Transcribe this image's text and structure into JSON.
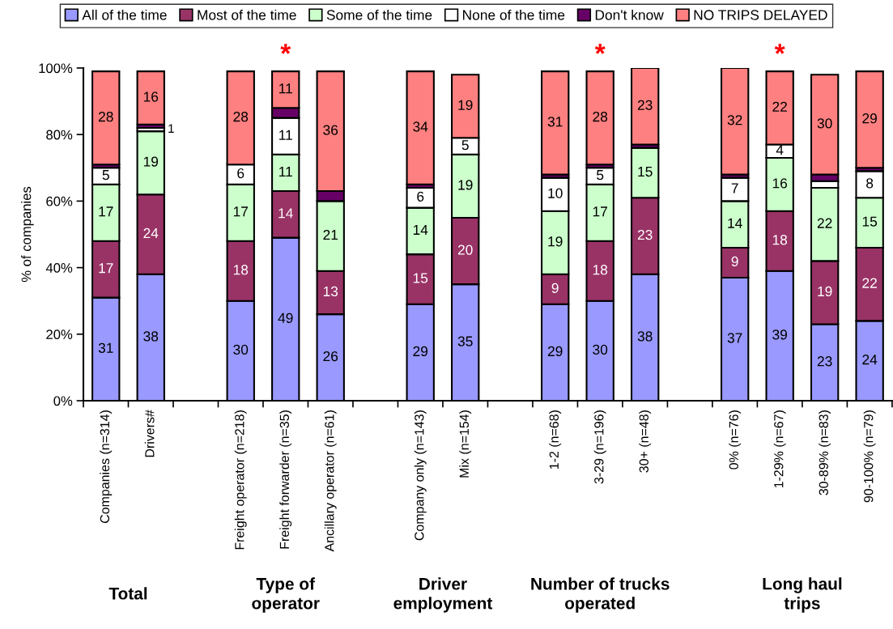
{
  "chart_data": {
    "type": "bar",
    "stacked": true,
    "ylabel": "% of companies",
    "categories": [
      "Companies (n=314)",
      "Drivers#",
      null,
      "Freight operator (n=218)",
      "Freight forwarder (n=35)",
      "Ancillary operator (n=61)",
      null,
      "Company only (n=143)",
      "Mix (n=154)",
      null,
      "1-2 (n=68)",
      "3-29 (n=196)",
      "30+ (n=48)",
      null,
      "0% (n=76)",
      "1-29% (n=67)",
      "30-89% (n=83)",
      "90-100% (n=79)"
    ],
    "series": [
      {
        "name": "All of the time",
        "color": "#9999ff",
        "values": [
          31,
          38,
          null,
          30,
          49,
          26,
          null,
          29,
          35,
          null,
          29,
          30,
          38,
          null,
          37,
          39,
          23,
          24
        ],
        "value_labels": [
          "31",
          "38",
          null,
          "30",
          "49",
          "26",
          null,
          "29",
          "35",
          null,
          "29",
          "30",
          "38",
          null,
          "37",
          "39",
          "23",
          "24"
        ]
      },
      {
        "name": "Most of the time",
        "color": "#993366",
        "values": [
          17,
          24,
          null,
          18,
          14,
          13,
          null,
          15,
          20,
          null,
          9,
          18,
          23,
          null,
          9,
          18,
          19,
          22
        ],
        "value_labels": [
          "17",
          "24",
          null,
          "18",
          "14",
          "13",
          null,
          "15",
          "20",
          null,
          "9",
          "18",
          "23",
          null,
          "9",
          "18",
          "19",
          "22"
        ]
      },
      {
        "name": "Some of the time",
        "color": "#ccffcc",
        "values": [
          17,
          19,
          null,
          17,
          11,
          21,
          null,
          14,
          19,
          null,
          19,
          17,
          15,
          null,
          14,
          16,
          22,
          15
        ],
        "value_labels": [
          "17",
          "19",
          null,
          "17",
          "11",
          "21",
          null,
          "14",
          "19",
          null,
          "19",
          "17",
          "15",
          null,
          "14",
          "16",
          "22",
          "15"
        ]
      },
      {
        "name": "None of the time",
        "color": "#ffffff",
        "values": [
          5,
          1,
          null,
          6,
          11,
          null,
          null,
          6,
          5,
          null,
          10,
          5,
          null,
          null,
          7,
          4,
          2,
          8
        ],
        "value_labels": [
          "5",
          "1",
          null,
          "6",
          "11",
          null,
          null,
          "6",
          "5",
          null,
          "10",
          "5",
          null,
          null,
          "7",
          "4",
          null,
          "8"
        ]
      },
      {
        "name": "Don't know",
        "color": "#660066",
        "values": [
          1,
          1,
          null,
          null,
          3,
          3,
          null,
          1,
          null,
          null,
          1,
          1,
          1,
          null,
          1,
          null,
          2,
          1
        ],
        "value_labels": [
          null,
          null,
          null,
          null,
          null,
          null,
          null,
          null,
          null,
          null,
          null,
          null,
          null,
          null,
          null,
          null,
          null,
          null
        ]
      },
      {
        "name": "NO TRIPS DELAYED",
        "color": "#ff8080",
        "values": [
          28,
          16,
          null,
          28,
          11,
          36,
          null,
          34,
          19,
          null,
          31,
          28,
          23,
          null,
          32,
          22,
          30,
          29
        ],
        "value_labels": [
          "28",
          "16",
          null,
          "28",
          "11",
          "36",
          null,
          "34",
          "19",
          null,
          "31",
          "28",
          "23",
          null,
          "32",
          "22",
          "30",
          "29"
        ]
      }
    ],
    "ylim": [
      0,
      100
    ],
    "yticks": [
      {
        "value": 0,
        "label": "0%"
      },
      {
        "value": 20,
        "label": "20%"
      },
      {
        "value": 40,
        "label": "40%"
      },
      {
        "value": 60,
        "label": "60%"
      },
      {
        "value": 80,
        "label": "80%"
      },
      {
        "value": 100,
        "label": "100%"
      }
    ],
    "grid": false,
    "legend": "top",
    "annotations": [
      "Total",
      "Type of\noperator",
      "Driver\nemployment",
      "Number of trucks\noperated",
      "Long haul\ntrips",
      {
        "text": "*",
        "x": "Freight forwarder (n=35)",
        "y": 99
      },
      {
        "text": "*",
        "x": "3-29 (n=196)",
        "y": 99
      },
      {
        "text": "*",
        "x": "1-29% (n=67)",
        "y": 99
      }
    ]
  }
}
